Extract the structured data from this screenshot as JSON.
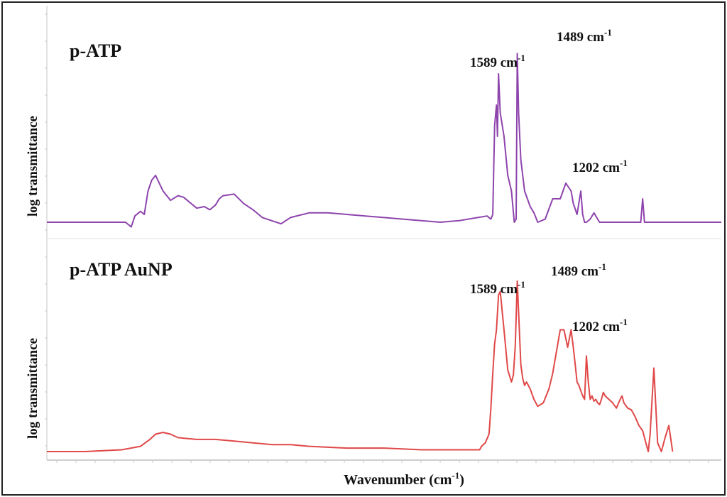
{
  "colors": {
    "top_series": "#8e44ad",
    "bottom_series": "#e04848",
    "frame": "#222222",
    "axis": "#cccccc"
  },
  "xlabel": {
    "base": "Wavenumber (cm",
    "sup": "-1",
    "close": ")"
  },
  "chart_data": [
    {
      "type": "line",
      "panel": "top",
      "title": "p-ATP",
      "ylabel": "log transmittance",
      "xlabel": "Wavenumber (cm-1)",
      "x_reversed": true,
      "xlim": [
        400,
        4000
      ],
      "ylim": [
        0,
        1
      ],
      "grid": false,
      "series": [
        {
          "color": "#8e44ad",
          "x": [
            4000,
            3900,
            3800,
            3700,
            3620,
            3580,
            3550,
            3530,
            3500,
            3480,
            3460,
            3440,
            3420,
            3380,
            3340,
            3300,
            3270,
            3230,
            3200,
            3160,
            3130,
            3100,
            3080,
            3060,
            3000,
            2950,
            2900,
            2850,
            2800,
            2750,
            2700,
            2600,
            2500,
            2400,
            2300,
            2200,
            2100,
            1900,
            1800,
            1700,
            1650,
            1630,
            1620,
            1610,
            1600,
            1595,
            1589,
            1580,
            1560,
            1540,
            1520,
            1505,
            1495,
            1489,
            1482,
            1470,
            1450,
            1420,
            1400,
            1380,
            1340,
            1300,
            1260,
            1230,
            1202,
            1190,
            1170,
            1150,
            1140,
            1130,
            1120,
            1100,
            1080,
            1060,
            1050,
            1020,
            990,
            950,
            900,
            850,
            830,
            820,
            810,
            780,
            760,
            700,
            650,
            600,
            500,
            400
          ],
          "y": [
            0.0,
            0.0,
            0.0,
            0.0,
            0.0,
            0.0,
            -0.03,
            0.04,
            0.07,
            0.05,
            0.2,
            0.27,
            0.3,
            0.2,
            0.14,
            0.17,
            0.16,
            0.12,
            0.09,
            0.1,
            0.08,
            0.11,
            0.15,
            0.17,
            0.18,
            0.12,
            0.08,
            0.03,
            0.01,
            -0.01,
            0.03,
            0.06,
            0.06,
            0.05,
            0.04,
            0.03,
            0.02,
            0.0,
            0.01,
            0.03,
            0.04,
            0.02,
            0.05,
            0.62,
            0.75,
            0.55,
            0.95,
            0.7,
            0.55,
            0.3,
            0.2,
            0.0,
            0.02,
            1.08,
            0.7,
            0.4,
            0.2,
            0.1,
            0.06,
            0.0,
            0.02,
            0.15,
            0.15,
            0.25,
            0.2,
            0.12,
            0.05,
            0.2,
            0.05,
            0.0,
            0.0,
            0.02,
            0.06,
            0.02,
            0.0,
            0.0,
            0.0,
            0.0,
            0.0,
            0.0,
            0.0,
            0.15,
            0.0,
            0.0,
            0.0,
            0.0,
            0.0,
            0.0,
            0.0,
            0.0
          ]
        }
      ],
      "annotations": [
        {
          "text": "1589 cm",
          "sup": "-1",
          "x": 1589
        },
        {
          "text": "1489 cm",
          "sup": "-1",
          "x": 1489
        },
        {
          "text": "1202 cm",
          "sup": "-1",
          "x": 1202
        }
      ]
    },
    {
      "type": "line",
      "panel": "bottom",
      "title": "p-ATP AuNP",
      "ylabel": "log transmittance",
      "xlabel": "Wavenumber (cm-1)",
      "x_reversed": true,
      "xlim": [
        400,
        4000
      ],
      "ylim": [
        0,
        1
      ],
      "grid": false,
      "series": [
        {
          "color": "#e04848",
          "x": [
            4000,
            3800,
            3600,
            3500,
            3450,
            3420,
            3380,
            3340,
            3300,
            3200,
            3100,
            3000,
            2900,
            2800,
            2700,
            2600,
            2400,
            2200,
            2000,
            1900,
            1800,
            1700,
            1690,
            1680,
            1660,
            1640,
            1630,
            1620,
            1610,
            1600,
            1589,
            1580,
            1560,
            1540,
            1520,
            1510,
            1500,
            1489,
            1480,
            1470,
            1460,
            1450,
            1440,
            1420,
            1400,
            1380,
            1350,
            1320,
            1300,
            1260,
            1240,
            1220,
            1202,
            1190,
            1180,
            1170,
            1160,
            1150,
            1140,
            1130,
            1120,
            1110,
            1100,
            1090,
            1080,
            1070,
            1060,
            1050,
            1040,
            1030,
            1020,
            1000,
            980,
            960,
            940,
            930,
            920,
            900,
            880,
            860,
            840,
            820,
            810,
            800,
            790,
            780,
            760,
            740,
            720,
            700,
            680,
            660
          ],
          "y": [
            0.0,
            0.0,
            0.01,
            0.03,
            0.07,
            0.1,
            0.11,
            0.1,
            0.08,
            0.07,
            0.07,
            0.06,
            0.05,
            0.04,
            0.04,
            0.03,
            0.02,
            0.02,
            0.01,
            0.01,
            0.01,
            0.01,
            0.01,
            0.03,
            0.05,
            0.1,
            0.25,
            0.45,
            0.62,
            0.7,
            0.9,
            0.92,
            0.7,
            0.47,
            0.4,
            0.44,
            0.6,
            0.98,
            0.75,
            0.5,
            0.42,
            0.38,
            0.4,
            0.36,
            0.3,
            0.26,
            0.28,
            0.36,
            0.45,
            0.7,
            0.7,
            0.6,
            0.7,
            0.6,
            0.5,
            0.4,
            0.38,
            0.35,
            0.32,
            0.3,
            0.55,
            0.4,
            0.3,
            0.32,
            0.29,
            0.3,
            0.28,
            0.27,
            0.3,
            0.34,
            0.32,
            0.3,
            0.28,
            0.25,
            0.3,
            0.32,
            0.28,
            0.25,
            0.24,
            0.2,
            0.15,
            0.12,
            0.08,
            0.04,
            0.0,
            0.1,
            0.48,
            0.05,
            0.0,
            0.08,
            0.15,
            0.0
          ]
        }
      ],
      "annotations": [
        {
          "text": "1589 cm",
          "sup": "-1",
          "x": 1589
        },
        {
          "text": "1489 cm",
          "sup": "-1",
          "x": 1489
        },
        {
          "text": "1202 cm",
          "sup": "-1",
          "x": 1202
        }
      ]
    }
  ]
}
